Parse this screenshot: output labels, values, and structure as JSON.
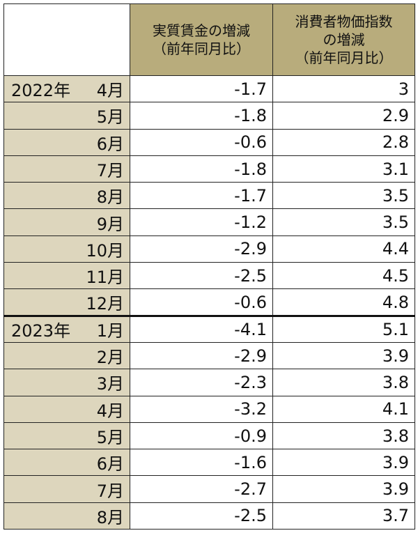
{
  "table": {
    "headers": {
      "corner": "",
      "col1_line1": "実質賃金の増減",
      "col1_line2": "（前年同月比）",
      "col2_line1": "消費者物価指数",
      "col2_line2": "の増減",
      "col2_line3": "（前年同月比）"
    },
    "colors": {
      "header_bg": "#b8ac7c",
      "label_bg": "#ddd6bd"
    }
  },
  "chart_data": {
    "type": "table",
    "columns": [
      "実質賃金の増減（前年同月比）",
      "消費者物価指数の増減（前年同月比）"
    ],
    "rows": [
      {
        "year": "2022年",
        "month": "4月",
        "real_wage": "-1.7",
        "cpi": "3"
      },
      {
        "year": "",
        "month": "5月",
        "real_wage": "-1.8",
        "cpi": "2.9"
      },
      {
        "year": "",
        "month": "6月",
        "real_wage": "-0.6",
        "cpi": "2.8"
      },
      {
        "year": "",
        "month": "7月",
        "real_wage": "-1.8",
        "cpi": "3.1"
      },
      {
        "year": "",
        "month": "8月",
        "real_wage": "-1.7",
        "cpi": "3.5"
      },
      {
        "year": "",
        "month": "9月",
        "real_wage": "-1.2",
        "cpi": "3.5"
      },
      {
        "year": "",
        "month": "10月",
        "real_wage": "-2.9",
        "cpi": "4.4"
      },
      {
        "year": "",
        "month": "11月",
        "real_wage": "-2.5",
        "cpi": "4.5"
      },
      {
        "year": "",
        "month": "12月",
        "real_wage": "-0.6",
        "cpi": "4.8"
      },
      {
        "year": "2023年",
        "month": "1月",
        "real_wage": "-4.1",
        "cpi": "5.1"
      },
      {
        "year": "",
        "month": "2月",
        "real_wage": "-2.9",
        "cpi": "3.9"
      },
      {
        "year": "",
        "month": "3月",
        "real_wage": "-2.3",
        "cpi": "3.8"
      },
      {
        "year": "",
        "month": "4月",
        "real_wage": "-3.2",
        "cpi": "4.1"
      },
      {
        "year": "",
        "month": "5月",
        "real_wage": "-0.9",
        "cpi": "3.8"
      },
      {
        "year": "",
        "month": "6月",
        "real_wage": "-1.6",
        "cpi": "3.9"
      },
      {
        "year": "",
        "month": "7月",
        "real_wage": "-2.7",
        "cpi": "3.9"
      },
      {
        "year": "",
        "month": "8月",
        "real_wage": "-2.5",
        "cpi": "3.7"
      }
    ]
  }
}
